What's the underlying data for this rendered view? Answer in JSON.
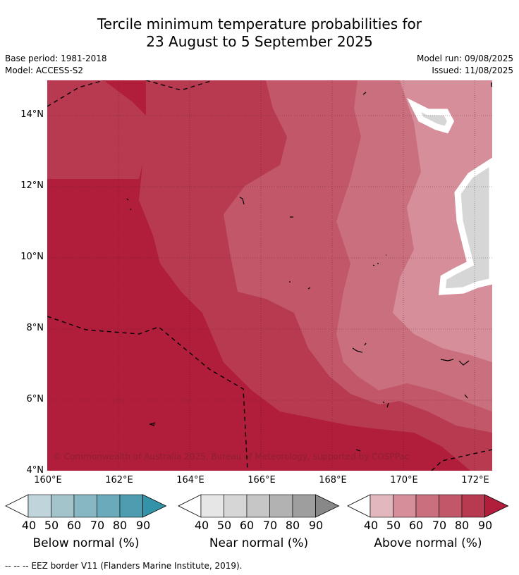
{
  "title": {
    "line1": "Tercile minimum temperature probabilities for",
    "line2": "23 August to 5 September 2025"
  },
  "meta": {
    "base_period": "Base period: 1981-2018",
    "model": "Model: ACCESS-S2",
    "model_run": "Model run: 09/08/2025",
    "issued": "Issued: 11/08/2025"
  },
  "copyright": "© Commonwealth of Australia 2025, Bureau of Meteorology, supported by COSPPac",
  "footnote": "--  --  -- EEZ border V11 (Flanders Marine Institute, 2019).",
  "axes": {
    "lat_labels": [
      "14°N",
      "12°N",
      "10°N",
      "8°N",
      "6°N",
      "4°N"
    ],
    "lon_labels": [
      "160°E",
      "162°E",
      "164°E",
      "166°E",
      "168°E",
      "170°E",
      "172°E"
    ]
  },
  "colorbars": [
    {
      "title": "Below normal (%)",
      "ticks": [
        "40",
        "50",
        "60",
        "70",
        "80",
        "90"
      ],
      "colors": [
        "#bfd4db",
        "#a3c4cb",
        "#86b7c3",
        "#6aaaba",
        "#4e9cb0",
        "#3393a8"
      ]
    },
    {
      "title": "Near normal (%)",
      "ticks": [
        "40",
        "50",
        "60",
        "70",
        "80",
        "90"
      ],
      "colors": [
        "#e6e6e6",
        "#d6d6d6",
        "#c6c6c6",
        "#b2b2b2",
        "#9e9e9e",
        "#888888"
      ]
    },
    {
      "title": "Above normal (%)",
      "ticks": [
        "40",
        "50",
        "60",
        "70",
        "80",
        "90"
      ],
      "colors": [
        "#e2b7bd",
        "#d68f9a",
        "#c96f7e",
        "#c2576a",
        "#b83a51",
        "#b01e3c"
      ]
    }
  ],
  "palette": {
    "above_90": "#b01e3c",
    "above_80": "#b83a51",
    "above_70": "#c2576a",
    "above_60": "#c96f7e",
    "above_50": "#d68f9a",
    "near_50": "#d6d6d6"
  }
}
